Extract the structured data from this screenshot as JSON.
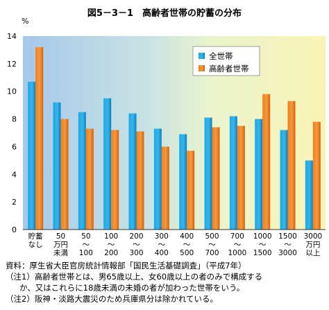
{
  "chart_data": {
    "type": "bar",
    "title": "図5－3－1　高齢者世帯の貯蓄の分布",
    "ylabel": "%",
    "ylim": [
      0,
      14
    ],
    "yticks": [
      0,
      2,
      4,
      6,
      8,
      10,
      12,
      14
    ],
    "grid": false,
    "legend_position": "top-right",
    "categories": [
      [
        "貯蓄",
        "なし"
      ],
      [
        "50",
        "万円",
        "未満"
      ],
      [
        "50",
        "～",
        "100"
      ],
      [
        "100",
        "～",
        "200"
      ],
      [
        "200",
        "～",
        "300"
      ],
      [
        "300",
        "～",
        "400"
      ],
      [
        "400",
        "～",
        "500"
      ],
      [
        "500",
        "～",
        "700"
      ],
      [
        "700",
        "～",
        "1000"
      ],
      [
        "1000",
        "～",
        "1500"
      ],
      [
        "1500",
        "～",
        "3000"
      ],
      [
        "3000",
        "万円",
        "以上"
      ]
    ],
    "series": [
      {
        "name": "全世帯",
        "values": [
          10.7,
          9.2,
          8.5,
          9.5,
          8.4,
          7.3,
          6.9,
          8.1,
          8.2,
          8.0,
          7.2,
          5.0
        ]
      },
      {
        "name": "高齢者世帯",
        "values": [
          13.2,
          8.0,
          7.3,
          7.2,
          7.1,
          6.0,
          5.7,
          7.4,
          7.5,
          9.8,
          9.3,
          7.8
        ]
      }
    ]
  },
  "notes": {
    "source": "資料：厚生省大臣官房統計情報部「国民生活基礎調査」（平成7年）",
    "note1": "（注1）高齢者世帯とは、男65歳以上、女60歳以上の者のみで構成する",
    "note1_cont": "か、又はこれらに18歳未満の未婚の者が加わった世帯をいう。",
    "note2": "（注2）阪神・淡路大震災のため兵庫県分は除かれている。"
  },
  "colors": {
    "series1": "#1f9fd8",
    "series2": "#f0781e",
    "background_left": "#a9cbea",
    "background_right": "#f8f4b8"
  }
}
